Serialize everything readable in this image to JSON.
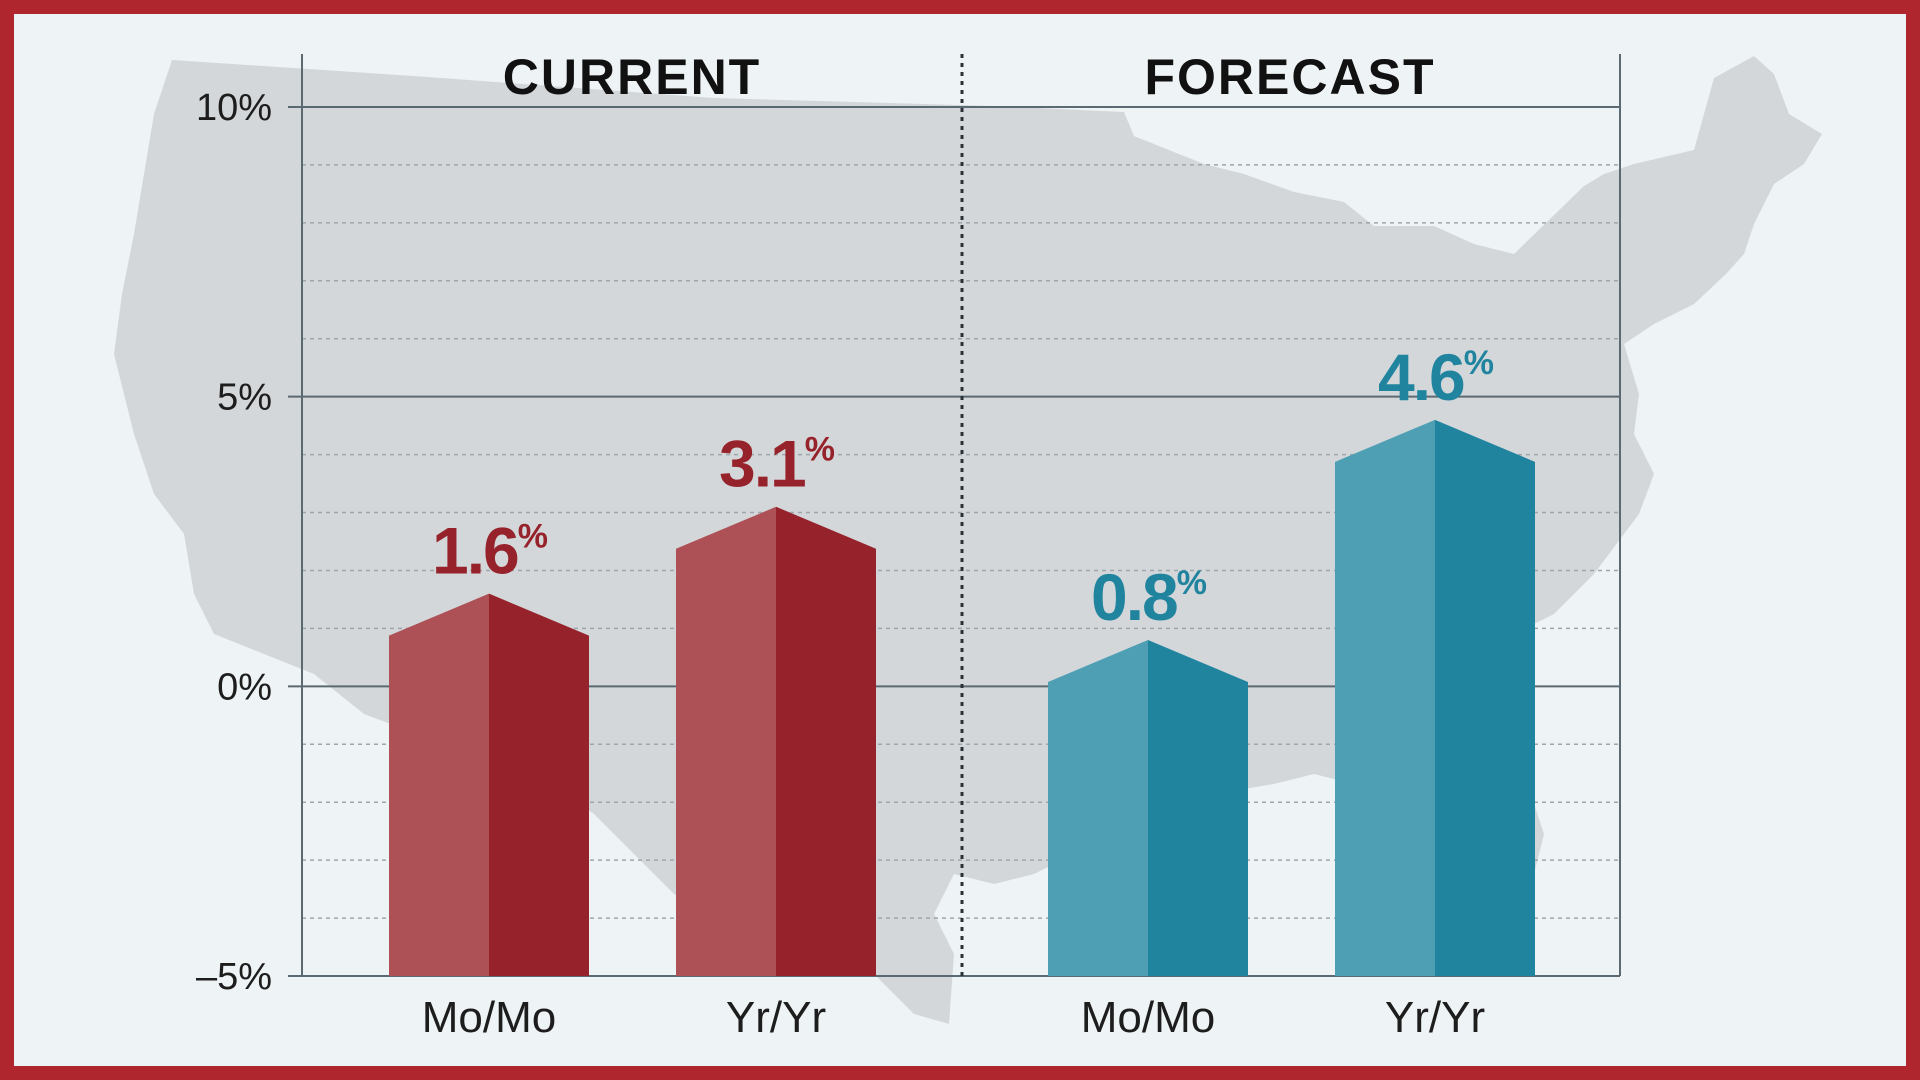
{
  "colors": {
    "border": "#b0262f",
    "background": "#eef3f6",
    "map": "#d3d7da",
    "current_light": "#ad5156",
    "current_dark": "#96232b",
    "current_label": "#96232b",
    "forecast_light": "#4f9fb4",
    "forecast_dark": "#21849f",
    "forecast_label": "#21849f"
  },
  "background_image": "us-map-silhouette",
  "chart_data": {
    "type": "bar",
    "groups": [
      {
        "title": "CURRENT",
        "categories": [
          "Mo/Mo",
          "Yr/Yr"
        ],
        "values": [
          1.6,
          3.1
        ],
        "labels": [
          "1.6",
          "3.1"
        ],
        "units": [
          "%",
          "%"
        ]
      },
      {
        "title": "FORECAST",
        "categories": [
          "Mo/Mo",
          "Yr/Yr"
        ],
        "values": [
          0.8,
          4.6
        ],
        "labels": [
          "0.8",
          "4.6"
        ],
        "units": [
          "%",
          "%"
        ]
      }
    ],
    "ylim": [
      -5,
      10
    ],
    "yticks": [
      10,
      5,
      0,
      -5
    ],
    "ytick_labels": [
      "10%",
      "5%",
      "0%",
      "–5%"
    ],
    "minor_grid_step": 1,
    "grid": true,
    "group_divider": "dotted"
  }
}
